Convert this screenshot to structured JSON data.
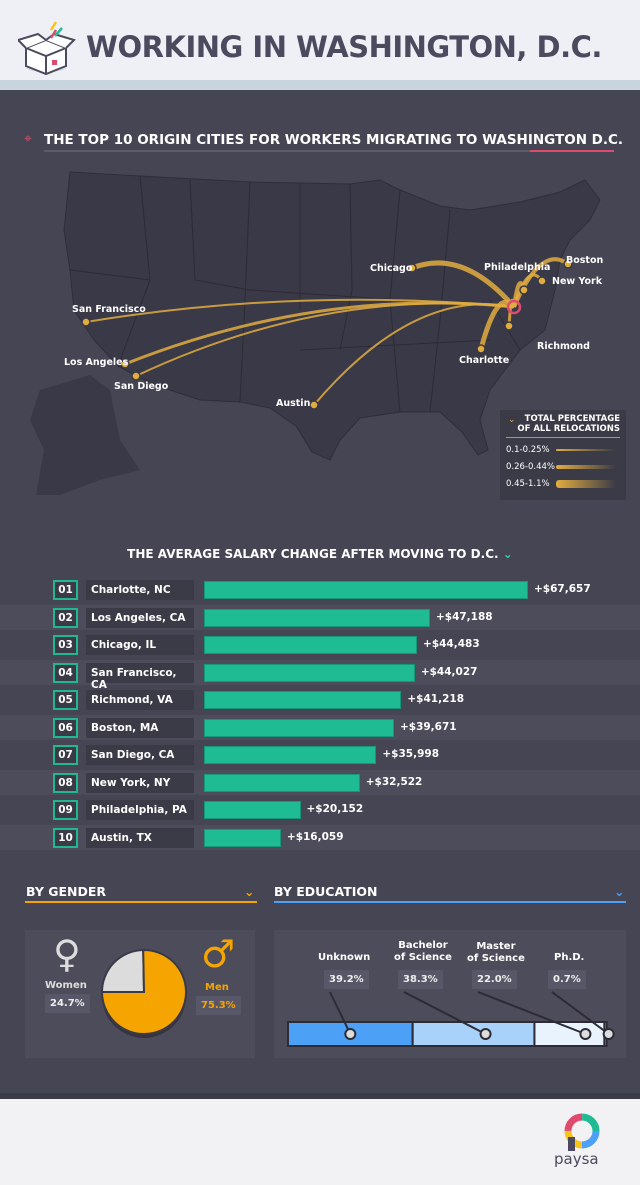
{
  "header": {
    "title": "WORKING IN WASHINGTON, D.C.",
    "icon": "open-box-icon"
  },
  "map_section": {
    "title": "THE TOP 10 ORIGIN CITIES FOR WORKERS MIGRATING TO WASHINGTON D.C.",
    "cities": [
      "Chicago",
      "Philadelphia",
      "Boston",
      "New York",
      "San Francisco",
      "Los Angeles",
      "San Diego",
      "Austin",
      "Charlotte",
      "Richmond"
    ],
    "legend": {
      "title_line1": "TOTAL PERCENTAGE",
      "title_line2": "OF ALL RELOCATIONS",
      "items": [
        "0.1-0.25%",
        "0.26-0.44%",
        "0.45-1.1%"
      ]
    },
    "colors": {
      "arrow": "#e2ad3f",
      "target": "#e04a6c"
    }
  },
  "chart_data": [
    {
      "type": "bar",
      "title": "THE AVERAGE SALARY CHANGE AFTER MOVING TO D.C.",
      "ranks": [
        "01",
        "02",
        "03",
        "04",
        "05",
        "06",
        "07",
        "08",
        "09",
        "10"
      ],
      "categories": [
        "Charlotte, NC",
        "Los Angeles, CA",
        "Chicago, IL",
        "San Francisco, CA",
        "Richmond, VA",
        "Boston, MA",
        "San Diego, CA",
        "New York, NY",
        "Philadelphia, PA",
        "Austin, TX"
      ],
      "values": [
        67657,
        47188,
        44483,
        44027,
        41218,
        39671,
        35998,
        32522,
        20152,
        16059
      ],
      "labels": [
        "+$67,657",
        "+$47,188",
        "+$44,483",
        "+$44,027",
        "+$41,218",
        "+$39,671",
        "+$35,998",
        "+$32,522",
        "+$20,152",
        "+$16,059"
      ],
      "color": "#1fbb92"
    },
    {
      "type": "pie",
      "title": "BY GENDER",
      "categories": [
        "Women",
        "Men"
      ],
      "values": [
        24.7,
        75.3
      ],
      "labels": [
        "24.7%",
        "75.3%"
      ],
      "colors": [
        "#dcdcdc",
        "#f6a500"
      ]
    },
    {
      "type": "bar",
      "stacked": true,
      "title": "BY EDUCATION",
      "categories": [
        "Unknown",
        "Bachelor of Science",
        "Master of Science",
        "Ph.D."
      ],
      "values": [
        39.2,
        38.3,
        22.0,
        0.7
      ],
      "labels": [
        "39.2%",
        "38.3%",
        "22.0%",
        "0.7%"
      ],
      "colors": [
        "#4ca0f5",
        "#a9d2fb",
        "#e8f3fe",
        "#ffffff"
      ]
    }
  ],
  "gender": {
    "women_label": "Women",
    "men_label": "Men",
    "women_value": "24.7%",
    "men_value": "75.3%"
  },
  "education": {
    "l1": "Unknown",
    "l2a": "Bachelor",
    "l2b": "of Science",
    "l3a": "Master",
    "l3b": "of Science",
    "l4": "Ph.D."
  },
  "footer": {
    "brand": "paysa"
  }
}
